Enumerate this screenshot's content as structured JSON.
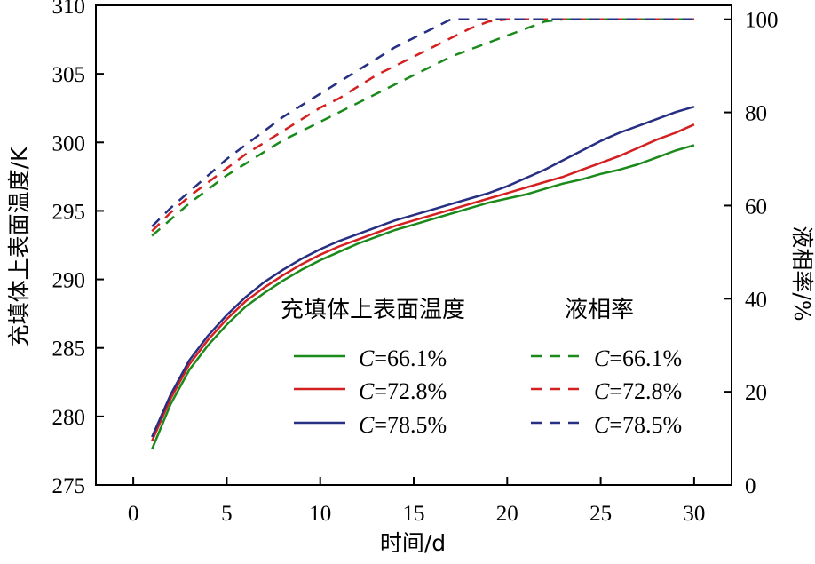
{
  "chart_data": {
    "type": "line",
    "xlabel": "时间/d",
    "ylabel": "充填体上表面温度/K",
    "y2label": "液相率/%",
    "xlim": [
      -2,
      32
    ],
    "ylim": [
      275,
      310
    ],
    "y2lim": [
      0,
      103
    ],
    "xticks": [
      0,
      5,
      10,
      15,
      20,
      25,
      30
    ],
    "yticks": [
      275,
      280,
      285,
      290,
      295,
      300,
      305,
      310
    ],
    "y2ticks": [
      0,
      20,
      40,
      60,
      80,
      100
    ],
    "grid": false,
    "legend": {
      "placement": "center",
      "group_titles": [
        "充填体上表面温度",
        "液相率"
      ],
      "italic_symbol": "C",
      "entries": [
        "=66.1%",
        "=72.8%",
        "=78.5%"
      ]
    },
    "x": [
      1,
      2,
      3,
      4,
      5,
      6,
      7,
      8,
      9,
      10,
      11,
      12,
      13,
      14,
      15,
      16,
      17,
      18,
      19,
      20,
      21,
      22,
      23,
      24,
      25,
      26,
      27,
      28,
      29,
      30
    ],
    "series": [
      {
        "axis": "left",
        "style": "solid",
        "color": "#1a8a1a",
        "values": [
          277.6,
          280.9,
          283.4,
          285.2,
          286.7,
          288.0,
          289.0,
          289.9,
          290.7,
          291.4,
          292.0,
          292.6,
          293.1,
          293.6,
          294.0,
          294.4,
          294.8,
          295.2,
          295.6,
          295.9,
          296.2,
          296.6,
          297.0,
          297.3,
          297.7,
          298.0,
          298.4,
          298.9,
          299.4,
          299.8
        ]
      },
      {
        "axis": "left",
        "style": "solid",
        "color": "#d42020",
        "values": [
          278.2,
          281.3,
          283.8,
          285.6,
          287.1,
          288.4,
          289.4,
          290.3,
          291.1,
          291.8,
          292.4,
          292.9,
          293.4,
          293.9,
          294.3,
          294.7,
          295.1,
          295.5,
          295.9,
          296.3,
          296.7,
          297.1,
          297.5,
          298.0,
          298.5,
          299.0,
          299.6,
          300.2,
          300.7,
          301.3
        ]
      },
      {
        "axis": "left",
        "style": "solid",
        "color": "#262f82",
        "values": [
          278.5,
          281.6,
          284.1,
          285.9,
          287.4,
          288.7,
          289.8,
          290.7,
          291.5,
          292.2,
          292.8,
          293.3,
          293.8,
          294.3,
          294.7,
          295.1,
          295.5,
          295.9,
          296.3,
          296.8,
          297.4,
          298.0,
          298.7,
          299.4,
          300.1,
          300.7,
          301.2,
          301.7,
          302.2,
          302.6
        ]
      },
      {
        "axis": "right",
        "style": "dashed",
        "color": "#1a8a1a",
        "values": [
          53.5,
          57.0,
          60.5,
          63.5,
          66.5,
          69.0,
          71.5,
          74.0,
          76.0,
          78.0,
          80.0,
          82.0,
          84.0,
          86.0,
          88.0,
          90.0,
          92.0,
          93.5,
          95.0,
          96.5,
          98.0,
          99.5,
          100,
          100,
          100,
          100,
          100,
          100,
          100,
          100
        ]
      },
      {
        "axis": "right",
        "style": "dashed",
        "color": "#d42020",
        "values": [
          54.5,
          58.5,
          62.0,
          65.0,
          68.0,
          71.0,
          73.5,
          76.0,
          78.5,
          81.0,
          83.0,
          85.5,
          88.0,
          90.0,
          92.0,
          94.0,
          96.0,
          98.0,
          99.5,
          100,
          100,
          100,
          100,
          100,
          100,
          100,
          100,
          100,
          100,
          100
        ]
      },
      {
        "axis": "right",
        "style": "dashed",
        "color": "#262f82",
        "values": [
          55.5,
          59.5,
          63.0,
          66.5,
          70.0,
          73.0,
          76.0,
          79.0,
          81.5,
          84.0,
          86.5,
          89.0,
          91.5,
          94.0,
          96.0,
          98.0,
          100,
          100,
          100,
          100,
          100,
          100,
          100,
          100,
          100,
          100,
          100,
          100,
          100,
          100
        ]
      }
    ]
  }
}
